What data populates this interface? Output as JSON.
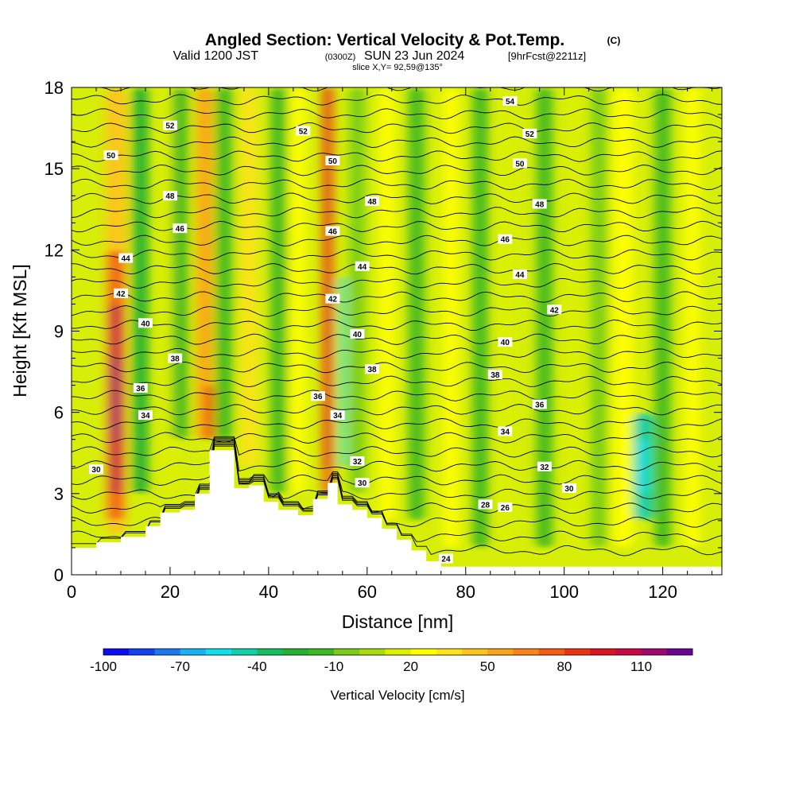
{
  "header": {
    "title": "Angled Section: Vertical Velocity & Pot.Temp.",
    "title_suffix": "(C)",
    "valid_prefix": "Valid 1200 JST",
    "valid_utc": "(0300Z)",
    "valid_date": "SUN 23 Jun 2024",
    "forecast": "[9hrFcst@2211z]",
    "slice": "slice X,Y= 92,59@135°"
  },
  "chart_data": {
    "type": "heatmap",
    "xlabel": "Distance [nm]",
    "ylabel": "Height [Kft MSL]",
    "xlim": [
      0,
      132
    ],
    "ylim": [
      0,
      18
    ],
    "x_ticks": [
      "0",
      "20",
      "40",
      "60",
      "80",
      "100",
      "120"
    ],
    "y_ticks": [
      "0",
      "3",
      "6",
      "9",
      "12",
      "15",
      "18"
    ],
    "colorbar": {
      "title": "Vertical Velocity [cm/s]",
      "tick_labels": [
        "-100",
        "-70",
        "-40",
        "-10",
        "20",
        "50",
        "80",
        "110"
      ],
      "levels": [
        -100,
        -90,
        -80,
        -70,
        -60,
        -50,
        -40,
        -30,
        -20,
        -10,
        0,
        10,
        20,
        30,
        40,
        50,
        60,
        70,
        80,
        90,
        100,
        110,
        120
      ],
      "colors": [
        "#0a0af0",
        "#1040f0",
        "#1a78f0",
        "#16b4f4",
        "#10e0e8",
        "#10d0a8",
        "#18bc60",
        "#24b030",
        "#3cb820",
        "#78cc18",
        "#a8dc10",
        "#dcf000",
        "#ffff00",
        "#fde21c",
        "#fcc41c",
        "#fca418",
        "#fa8418",
        "#f45c14",
        "#ea3410",
        "#dc1420",
        "#c80844",
        "#a00870",
        "#6a0490"
      ]
    },
    "terrain": [
      [
        0,
        1.0
      ],
      [
        5,
        1.2
      ],
      [
        10,
        1.4
      ],
      [
        15,
        1.8
      ],
      [
        18,
        2.3
      ],
      [
        22,
        2.4
      ],
      [
        25,
        3.0
      ],
      [
        28,
        4.6
      ],
      [
        31,
        4.6
      ],
      [
        33,
        3.2
      ],
      [
        36,
        3.3
      ],
      [
        39,
        2.7
      ],
      [
        42,
        2.4
      ],
      [
        46,
        2.2
      ],
      [
        49,
        2.8
      ],
      [
        52,
        3.4
      ],
      [
        54,
        2.6
      ],
      [
        57,
        2.4
      ],
      [
        60,
        2.1
      ],
      [
        63,
        1.7
      ],
      [
        66,
        1.3
      ],
      [
        69,
        0.9
      ],
      [
        72,
        0.5
      ],
      [
        75,
        0.3
      ],
      [
        80,
        0.3
      ],
      [
        132,
        0.3
      ]
    ],
    "vertical_velocity_cells": [
      {
        "x": 9,
        "w": 4,
        "y0": 1.5,
        "y1": 18,
        "v": 40
      },
      {
        "x": 9,
        "w": 3,
        "y0": 2,
        "y1": 12,
        "v": 70
      },
      {
        "x": 9,
        "w": 2.5,
        "y0": 3,
        "y1": 10,
        "v": 100
      },
      {
        "x": 9,
        "w": 1.5,
        "y0": 5,
        "y1": 8,
        "v": 115
      },
      {
        "x": 14,
        "w": 3,
        "y0": 3,
        "y1": 18,
        "v": -25
      },
      {
        "x": 20,
        "w": 3,
        "y0": 3,
        "y1": 18,
        "v": 10
      },
      {
        "x": 22,
        "w": 3,
        "y0": 5,
        "y1": 18,
        "v": -20
      },
      {
        "x": 27,
        "w": 3,
        "y0": 5,
        "y1": 18,
        "v": 50
      },
      {
        "x": 28,
        "w": 1.5,
        "y0": 5,
        "y1": 7,
        "v": 80
      },
      {
        "x": 31,
        "w": 3,
        "y0": 5,
        "y1": 18,
        "v": -15
      },
      {
        "x": 36,
        "w": 3,
        "y0": 4,
        "y1": 18,
        "v": 30
      },
      {
        "x": 42,
        "w": 3,
        "y0": 3,
        "y1": 18,
        "v": -20
      },
      {
        "x": 46,
        "w": 3,
        "y0": 3,
        "y1": 18,
        "v": 20
      },
      {
        "x": 52,
        "w": 2,
        "y0": 3,
        "y1": 18,
        "v": 70
      },
      {
        "x": 52,
        "w": 1,
        "y0": 4,
        "y1": 18,
        "v": 90
      },
      {
        "x": 55,
        "w": 1.2,
        "y0": 4,
        "y1": 11,
        "v": -60
      },
      {
        "x": 58,
        "w": 3,
        "y0": 3,
        "y1": 18,
        "v": -5
      },
      {
        "x": 64,
        "w": 3,
        "y0": 2,
        "y1": 18,
        "v": 20
      },
      {
        "x": 70,
        "w": 3,
        "y0": 2,
        "y1": 18,
        "v": -15
      },
      {
        "x": 77,
        "w": 3,
        "y0": 1,
        "y1": 18,
        "v": 25
      },
      {
        "x": 83,
        "w": 3,
        "y0": 1,
        "y1": 18,
        "v": -15
      },
      {
        "x": 88,
        "w": 3,
        "y0": 1,
        "y1": 18,
        "v": 15
      },
      {
        "x": 96,
        "w": 3,
        "y0": 1,
        "y1": 18,
        "v": -20
      },
      {
        "x": 102,
        "w": 3,
        "y0": 1,
        "y1": 18,
        "v": 10
      },
      {
        "x": 107,
        "w": 3,
        "y0": 1,
        "y1": 18,
        "v": -10
      },
      {
        "x": 112,
        "w": 4,
        "y0": 1,
        "y1": 18,
        "v": 25
      },
      {
        "x": 116,
        "w": 4,
        "y0": 2,
        "y1": 6,
        "v": -45
      },
      {
        "x": 116,
        "w": 2,
        "y0": 3,
        "y1": 5,
        "v": -60
      },
      {
        "x": 120,
        "w": 3,
        "y0": 1,
        "y1": 18,
        "v": -15
      },
      {
        "x": 126,
        "w": 3,
        "y0": 1,
        "y1": 18,
        "v": 25
      }
    ],
    "potential_temperature_contours": [
      24,
      26,
      28,
      30,
      32,
      34,
      36,
      38,
      40,
      42,
      44,
      46,
      48,
      50,
      52,
      54
    ],
    "contour_labels": [
      {
        "text": "54",
        "x": 89,
        "y": 17.5
      },
      {
        "text": "52",
        "x": 20,
        "y": 16.6
      },
      {
        "text": "52",
        "x": 47,
        "y": 16.4
      },
      {
        "text": "52",
        "x": 93,
        "y": 16.3
      },
      {
        "text": "50",
        "x": 8,
        "y": 15.5
      },
      {
        "text": "50",
        "x": 53,
        "y": 15.3
      },
      {
        "text": "50",
        "x": 91,
        "y": 15.2
      },
      {
        "text": "48",
        "x": 20,
        "y": 14.0
      },
      {
        "text": "48",
        "x": 61,
        "y": 13.8
      },
      {
        "text": "48",
        "x": 95,
        "y": 13.7
      },
      {
        "text": "46",
        "x": 22,
        "y": 12.8
      },
      {
        "text": "46",
        "x": 53,
        "y": 12.7
      },
      {
        "text": "46",
        "x": 88,
        "y": 12.4
      },
      {
        "text": "44",
        "x": 11,
        "y": 11.7
      },
      {
        "text": "44",
        "x": 59,
        "y": 11.4
      },
      {
        "text": "44",
        "x": 91,
        "y": 11.1
      },
      {
        "text": "42",
        "x": 10,
        "y": 10.4
      },
      {
        "text": "42",
        "x": 53,
        "y": 10.2
      },
      {
        "text": "42",
        "x": 98,
        "y": 9.8
      },
      {
        "text": "40",
        "x": 15,
        "y": 9.3
      },
      {
        "text": "40",
        "x": 58,
        "y": 8.9
      },
      {
        "text": "40",
        "x": 88,
        "y": 8.6
      },
      {
        "text": "38",
        "x": 21,
        "y": 8.0
      },
      {
        "text": "38",
        "x": 61,
        "y": 7.6
      },
      {
        "text": "38",
        "x": 86,
        "y": 7.4
      },
      {
        "text": "36",
        "x": 14,
        "y": 6.9
      },
      {
        "text": "36",
        "x": 50,
        "y": 6.6
      },
      {
        "text": "36",
        "x": 95,
        "y": 6.3
      },
      {
        "text": "34",
        "x": 15,
        "y": 5.9
      },
      {
        "text": "34",
        "x": 54,
        "y": 5.9
      },
      {
        "text": "34",
        "x": 88,
        "y": 5.3
      },
      {
        "text": "32",
        "x": 58,
        "y": 4.2
      },
      {
        "text": "32",
        "x": 96,
        "y": 4.0
      },
      {
        "text": "30",
        "x": 5,
        "y": 3.9
      },
      {
        "text": "30",
        "x": 59,
        "y": 3.4
      },
      {
        "text": "30",
        "x": 101,
        "y": 3.2
      },
      {
        "text": "28",
        "x": 84,
        "y": 2.6
      },
      {
        "text": "26",
        "x": 88,
        "y": 2.5
      },
      {
        "text": "24",
        "x": 76,
        "y": 0.6
      }
    ]
  }
}
